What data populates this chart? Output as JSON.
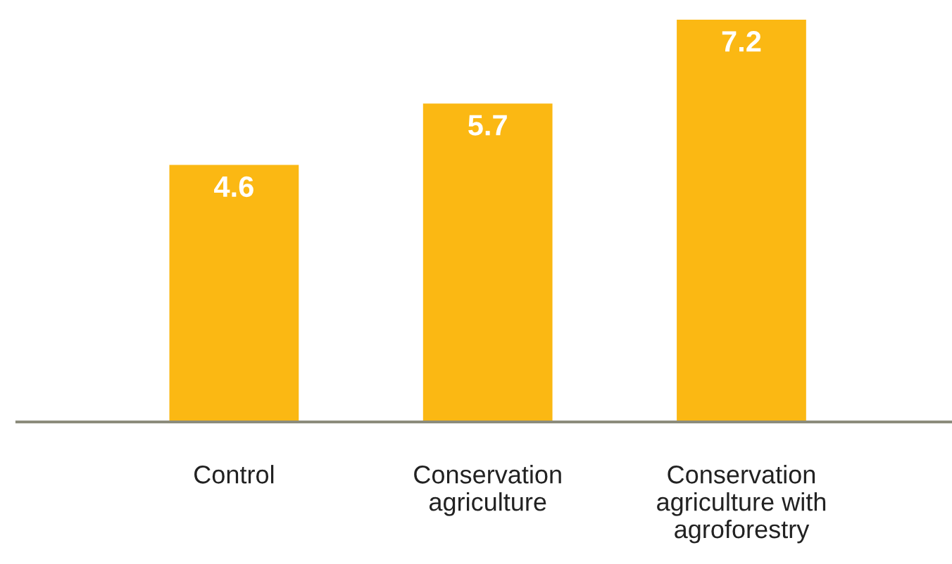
{
  "chart_data": {
    "type": "bar",
    "categories": [
      "Control",
      "Conservation\nagriculture",
      "Conservation\nagriculture with\nagroforestry"
    ],
    "values": [
      4.6,
      5.7,
      7.2
    ],
    "color": "#fbb813",
    "data_labels": true,
    "grid": false,
    "legend": false
  }
}
